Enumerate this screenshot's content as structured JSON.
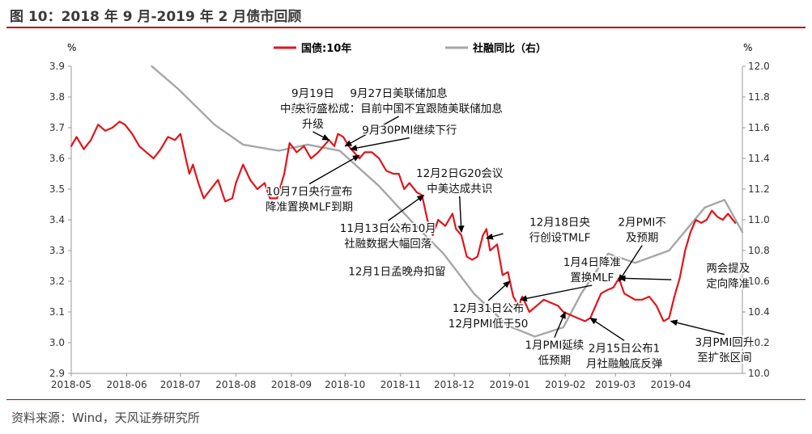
{
  "title": "图 10：2018 年 9 月-2019 年 2 月债市回顾",
  "source": "资料来源：Wind，天风证券研究所",
  "colors": {
    "bond": "#e0151b",
    "tsf": "#a6a6a6",
    "accent": "#c00000",
    "text": "#222222"
  },
  "chart_data": {
    "type": "line",
    "x_ticks": [
      "2018-05",
      "2018-06",
      "2018-07",
      "2018-08",
      "2018-09",
      "2018-10",
      "2018-11",
      "2018-12",
      "2019-01",
      "2019-02",
      "2019-03",
      "2019-04"
    ],
    "x_range": [
      "2018-05-01",
      "2019-05-11"
    ],
    "y_left": {
      "unit_label": "%",
      "min": 2.9,
      "max": 3.9,
      "ticks": [
        "2.9",
        "3.0",
        "3.1",
        "3.2",
        "3.3",
        "3.4",
        "3.5",
        "3.6",
        "3.7",
        "3.8",
        "3.9"
      ]
    },
    "y_right": {
      "unit_label": "%",
      "min": 10.0,
      "max": 12.0,
      "ticks": [
        "10.0",
        "10.2",
        "10.4",
        "10.6",
        "10.8",
        "11.0",
        "11.2",
        "11.4",
        "11.6",
        "11.8",
        "12.0"
      ]
    },
    "legend_position": "top",
    "series": [
      {
        "name": "国债:10年",
        "axis": "left",
        "color": "#e0151b",
        "points": [
          [
            "2018-05-01",
            3.64
          ],
          [
            "2018-05-04",
            3.67
          ],
          [
            "2018-05-08",
            3.63
          ],
          [
            "2018-05-12",
            3.66
          ],
          [
            "2018-05-16",
            3.71
          ],
          [
            "2018-05-20",
            3.69
          ],
          [
            "2018-05-24",
            3.7
          ],
          [
            "2018-05-28",
            3.72
          ],
          [
            "2018-05-31",
            3.71
          ],
          [
            "2018-06-04",
            3.68
          ],
          [
            "2018-06-08",
            3.64
          ],
          [
            "2018-06-12",
            3.62
          ],
          [
            "2018-06-16",
            3.6
          ],
          [
            "2018-06-20",
            3.63
          ],
          [
            "2018-06-24",
            3.67
          ],
          [
            "2018-06-28",
            3.66
          ],
          [
            "2018-07-01",
            3.68
          ],
          [
            "2018-07-04",
            3.6
          ],
          [
            "2018-07-06",
            3.55
          ],
          [
            "2018-07-08",
            3.58
          ],
          [
            "2018-07-11",
            3.52
          ],
          [
            "2018-07-14",
            3.47
          ],
          [
            "2018-07-18",
            3.5
          ],
          [
            "2018-07-22",
            3.53
          ],
          [
            "2018-07-26",
            3.46
          ],
          [
            "2018-07-30",
            3.47
          ],
          [
            "2018-08-01",
            3.52
          ],
          [
            "2018-08-05",
            3.58
          ],
          [
            "2018-08-09",
            3.53
          ],
          [
            "2018-08-13",
            3.5
          ],
          [
            "2018-08-17",
            3.52
          ],
          [
            "2018-08-20",
            3.47
          ],
          [
            "2018-08-24",
            3.47
          ],
          [
            "2018-08-28",
            3.55
          ],
          [
            "2018-08-31",
            3.65
          ],
          [
            "2018-09-04",
            3.62
          ],
          [
            "2018-09-08",
            3.64
          ],
          [
            "2018-09-12",
            3.6
          ],
          [
            "2018-09-16",
            3.62
          ],
          [
            "2018-09-19",
            3.64
          ],
          [
            "2018-09-22",
            3.66
          ],
          [
            "2018-09-25",
            3.64
          ],
          [
            "2018-09-27",
            3.68
          ],
          [
            "2018-09-30",
            3.67
          ],
          [
            "2018-10-03",
            3.64
          ],
          [
            "2018-10-06",
            3.62
          ],
          [
            "2018-10-09",
            3.6
          ],
          [
            "2018-10-12",
            3.62
          ],
          [
            "2018-10-16",
            3.62
          ],
          [
            "2018-10-20",
            3.6
          ],
          [
            "2018-10-24",
            3.56
          ],
          [
            "2018-10-28",
            3.55
          ],
          [
            "2018-10-31",
            3.55
          ],
          [
            "2018-11-03",
            3.5
          ],
          [
            "2018-11-06",
            3.52
          ],
          [
            "2018-11-10",
            3.49
          ],
          [
            "2018-11-13",
            3.48
          ],
          [
            "2018-11-16",
            3.4
          ],
          [
            "2018-11-19",
            3.35
          ],
          [
            "2018-11-22",
            3.4
          ],
          [
            "2018-11-26",
            3.38
          ],
          [
            "2018-11-30",
            3.42
          ],
          [
            "2018-12-02",
            3.37
          ],
          [
            "2018-12-05",
            3.35
          ],
          [
            "2018-12-08",
            3.28
          ],
          [
            "2018-12-11",
            3.27
          ],
          [
            "2018-12-14",
            3.28
          ],
          [
            "2018-12-17",
            3.35
          ],
          [
            "2018-12-19",
            3.37
          ],
          [
            "2018-12-21",
            3.3
          ],
          [
            "2018-12-25",
            3.32
          ],
          [
            "2018-12-28",
            3.22
          ],
          [
            "2018-12-31",
            3.23
          ],
          [
            "2019-01-03",
            3.15
          ],
          [
            "2019-01-06",
            3.12
          ],
          [
            "2019-01-08",
            3.15
          ],
          [
            "2019-01-12",
            3.1
          ],
          [
            "2019-01-16",
            3.12
          ],
          [
            "2019-01-20",
            3.14
          ],
          [
            "2019-01-24",
            3.13
          ],
          [
            "2019-01-28",
            3.12
          ],
          [
            "2019-01-31",
            3.1
          ],
          [
            "2019-02-04",
            3.09
          ],
          [
            "2019-02-08",
            3.08
          ],
          [
            "2019-02-12",
            3.07
          ],
          [
            "2019-02-15",
            3.08
          ],
          [
            "2019-02-18",
            3.12
          ],
          [
            "2019-02-21",
            3.16
          ],
          [
            "2019-02-24",
            3.17
          ],
          [
            "2019-02-28",
            3.18
          ],
          [
            "2019-03-03",
            3.21
          ],
          [
            "2019-03-06",
            3.16
          ],
          [
            "2019-03-09",
            3.15
          ],
          [
            "2019-03-12",
            3.14
          ],
          [
            "2019-03-16",
            3.14
          ],
          [
            "2019-03-20",
            3.15
          ],
          [
            "2019-03-24",
            3.12
          ],
          [
            "2019-03-28",
            3.07
          ],
          [
            "2019-03-31",
            3.08
          ],
          [
            "2019-04-03",
            3.15
          ],
          [
            "2019-04-06",
            3.21
          ],
          [
            "2019-04-09",
            3.3
          ],
          [
            "2019-04-12",
            3.36
          ],
          [
            "2019-04-15",
            3.4
          ],
          [
            "2019-04-18",
            3.39
          ],
          [
            "2019-04-21",
            3.4
          ],
          [
            "2019-04-24",
            3.43
          ],
          [
            "2019-04-27",
            3.41
          ],
          [
            "2019-04-30",
            3.4
          ],
          [
            "2019-05-03",
            3.42
          ],
          [
            "2019-05-07",
            3.39
          ]
        ]
      },
      {
        "name": "社融同比（右）",
        "axis": "right",
        "color": "#a6a6a6",
        "points": [
          [
            "2018-06-15",
            12.0
          ],
          [
            "2018-06-30",
            11.85
          ],
          [
            "2018-07-20",
            11.62
          ],
          [
            "2018-08-05",
            11.49
          ],
          [
            "2018-08-25",
            11.45
          ],
          [
            "2018-09-10",
            11.49
          ],
          [
            "2018-09-28",
            11.45
          ],
          [
            "2018-10-20",
            11.22
          ],
          [
            "2018-11-08",
            10.98
          ],
          [
            "2018-11-25",
            10.78
          ],
          [
            "2018-12-12",
            10.52
          ],
          [
            "2018-12-31",
            10.31
          ],
          [
            "2019-01-15",
            10.24
          ],
          [
            "2019-01-31",
            10.3
          ],
          [
            "2019-02-10",
            10.52
          ],
          [
            "2019-02-25",
            10.78
          ],
          [
            "2019-03-12",
            10.72
          ],
          [
            "2019-03-31",
            10.8
          ],
          [
            "2019-04-20",
            11.08
          ],
          [
            "2019-05-01",
            11.13
          ],
          [
            "2019-05-11",
            10.92
          ]
        ]
      }
    ],
    "annotations": [
      {
        "lines": [
          "9月19日",
          "中美贸易摩擦",
          "升级"
        ],
        "text_at": [
          "2018-09-13",
          3.8
        ],
        "arrow_to": [
          "2018-09-22",
          3.66
        ]
      },
      {
        "lines": [
          "9月27日美联储加息",
          "央行盛松成：目前中国不宜跟随美联储加息"
        ],
        "text_at": [
          "2018-10-31",
          3.8
        ],
        "arrow_to": [
          "2018-10-01",
          3.64
        ]
      },
      {
        "lines": [
          "9月30PMI继续下行"
        ],
        "text_at": [
          "2018-11-06",
          3.68
        ],
        "arrow_to": [
          "2018-10-04",
          3.63
        ]
      },
      {
        "lines": [
          "12月2日G20会议",
          "中美达成共识"
        ],
        "text_at": [
          "2018-12-04",
          3.54
        ],
        "arrow_to": [
          "2018-12-05",
          3.36
        ]
      },
      {
        "lines": [
          "10月7日央行宣布",
          "降准置换MLF到期"
        ],
        "text_at": [
          "2018-09-11",
          3.48
        ],
        "arrow_to": [
          "2018-10-09",
          3.61
        ]
      },
      {
        "lines": [
          "11月13日公布10月",
          "社融数据大幅回落"
        ],
        "text_at": [
          "2018-10-25",
          3.36
        ],
        "arrow_to": [
          "2018-11-14",
          3.48
        ]
      },
      {
        "lines": [
          "12月1日孟晚舟扣留"
        ],
        "text_at": [
          "2018-10-30",
          3.22
        ],
        "arrow_to": null
      },
      {
        "lines": [
          "12月18日央",
          "行创设TMLF"
        ],
        "text_at": [
          "2019-01-29",
          3.38
        ],
        "arrow_to": [
          "2018-12-19",
          3.34
        ]
      },
      {
        "lines": [
          "1月4日降准",
          "置换MLF"
        ],
        "text_at": [
          "2019-02-16",
          3.25
        ],
        "arrow_to": [
          "2019-01-07",
          3.14
        ]
      },
      {
        "lines": [
          "12月31日公布",
          "12月PMI低于50"
        ],
        "text_at": [
          "2018-12-20",
          3.1
        ],
        "arrow_to": [
          "2019-01-01",
          3.2
        ]
      },
      {
        "lines": [
          "2月PMI不",
          "及预期"
        ],
        "text_at": [
          "2019-03-16",
          3.38
        ],
        "arrow_to": [
          "2019-03-03",
          3.2
        ]
      },
      {
        "lines": [
          "两会提及",
          "定向降准"
        ],
        "text_at": [
          "2019-05-03",
          3.23
        ],
        "arrow_to": [
          "2019-03-03",
          3.21
        ]
      },
      {
        "lines": [
          "1月PMI延续",
          "低预期"
        ],
        "text_at": [
          "2019-01-26",
          2.98
        ],
        "arrow_to": [
          "2019-02-01",
          3.1
        ]
      },
      {
        "lines": [
          "2月15日公布1",
          "月社融触底反弹"
        ],
        "text_at": [
          "2019-03-06",
          2.97
        ],
        "arrow_to": [
          "2019-02-15",
          3.08
        ]
      },
      {
        "lines": [
          "3月PMI回升",
          "至扩张区间"
        ],
        "text_at": [
          "2019-05-01",
          2.99
        ],
        "arrow_to": [
          "2019-04-01",
          3.07
        ]
      }
    ]
  }
}
